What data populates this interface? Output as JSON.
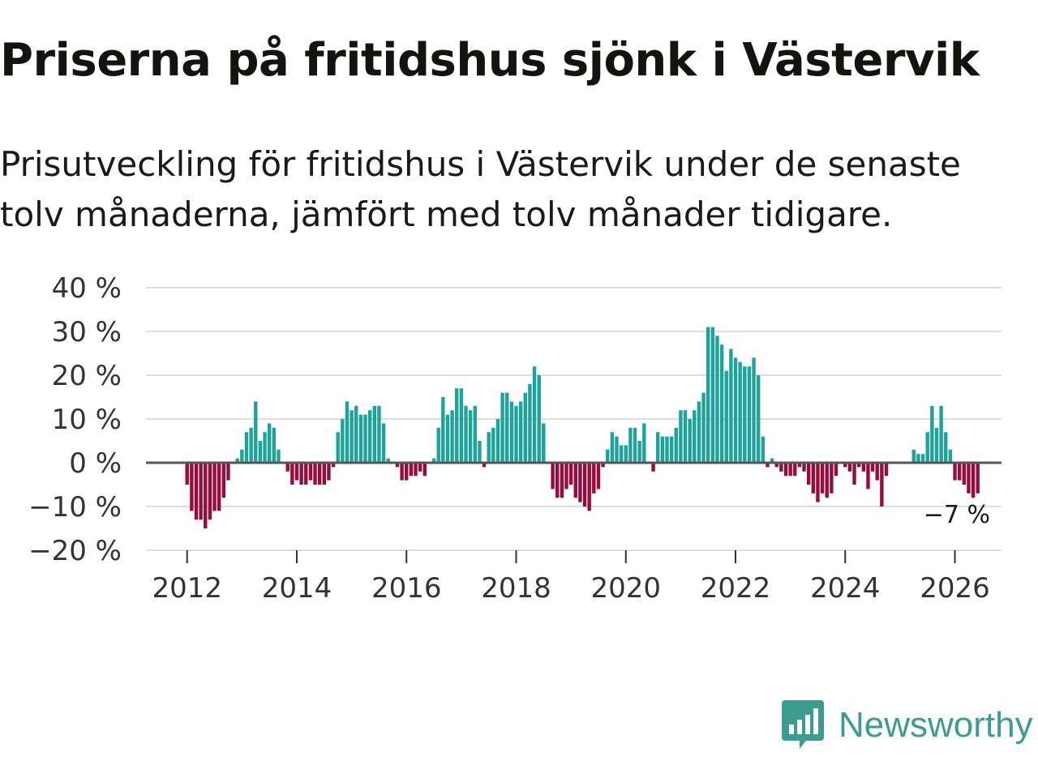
{
  "title": "Priserna på fritidshus sjönk i Västervik",
  "subtitle": "Prisutveckling för fritidshus i Västervik under de senaste tolv månaderna, jämfört med tolv månader tidigare.",
  "brand": "Newsworthy",
  "colors": {
    "positive": "#1ba39c",
    "negative": "#9b0a3e",
    "grid": "#dddddd",
    "zero": "#555555",
    "brand": "#3a9d90"
  },
  "chart_data": {
    "type": "bar",
    "title": "Priserna på fritidshus sjönk i Västervik",
    "xlabel": "",
    "ylabel": "",
    "ylim": [
      -20,
      40
    ],
    "yticks": [
      40,
      30,
      20,
      10,
      0,
      -10,
      -20
    ],
    "ytick_labels": [
      "40 %",
      "30 %",
      "20 %",
      "10 %",
      "0 %",
      "−10 %",
      "−20 %"
    ],
    "xticks": [
      2012,
      2014,
      2016,
      2018,
      2020,
      2022,
      2024,
      2026
    ],
    "xtick_labels": [
      "2012",
      "2014",
      "2016",
      "2018",
      "2020",
      "2022",
      "2024",
      "2026"
    ],
    "x_range": [
      2011.25,
      2026.85
    ],
    "series": [
      {
        "name": "Prisutveckling",
        "start": 2012.0,
        "step_months": 1,
        "values": [
          -5,
          -11,
          -13,
          -13,
          -15,
          -13,
          -11,
          -11,
          -8,
          -4,
          0,
          1,
          3,
          7,
          8,
          14,
          5,
          7,
          9,
          8,
          3,
          0,
          -2,
          -5,
          -4,
          -5,
          -5,
          -4,
          -5,
          -5,
          -5,
          -4,
          -1,
          7,
          10,
          14,
          12,
          13,
          11,
          11,
          12,
          13,
          13,
          9,
          1,
          0,
          -1,
          -4,
          -4,
          -3,
          -3,
          -2,
          -3,
          0,
          1,
          8,
          15,
          11,
          12,
          17,
          17,
          13,
          12,
          13,
          5,
          -1,
          7,
          8,
          10,
          16,
          16,
          14,
          13,
          14,
          16,
          18,
          22,
          20,
          9,
          0,
          -6,
          -8,
          -8,
          -6,
          -5,
          -8,
          -9,
          -10,
          -11,
          -7,
          -6,
          -1,
          3,
          7,
          6,
          4,
          4,
          8,
          8,
          5,
          9,
          0,
          -2,
          7,
          6,
          6,
          6,
          8,
          12,
          12,
          10,
          12,
          14,
          16,
          31,
          31,
          29,
          27,
          21,
          26,
          24,
          23,
          22,
          22,
          24,
          20,
          6,
          -1,
          1,
          -1,
          -2,
          -3,
          -3,
          -3,
          -1,
          -2,
          -5,
          -7,
          -9,
          -7,
          -8,
          -7,
          -3,
          0,
          -1,
          -2,
          -5,
          -1,
          -2,
          -6,
          -2,
          -4,
          -10,
          -3,
          0,
          0,
          0,
          0,
          0,
          3,
          2,
          2,
          7,
          13,
          8,
          13,
          7,
          3,
          -4,
          -4,
          -5,
          -7,
          -8,
          -7
        ]
      }
    ],
    "last_value_label": "−7 %"
  }
}
